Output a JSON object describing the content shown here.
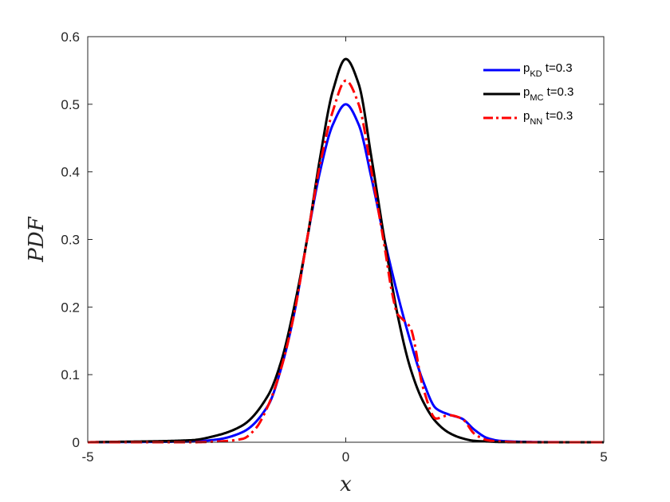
{
  "chart_data": {
    "type": "line",
    "title": "",
    "xlabel": "x",
    "ylabel": "PDF",
    "xlim": [
      -5,
      5
    ],
    "ylim": [
      0,
      0.6
    ],
    "xticks": [
      "-5",
      "0",
      "5"
    ],
    "yticks": [
      "0",
      "0.1",
      "0.2",
      "0.3",
      "0.4",
      "0.5",
      "0.6"
    ],
    "grid": false,
    "legend_position": "top-right",
    "series": [
      {
        "name": "p_KD t=0.3",
        "legend": {
          "base": "p",
          "sub": "KD",
          "suffix": " t=0.3"
        },
        "color": "#0000ff",
        "dash": "solid",
        "x": [
          -5,
          -3,
          -2.5,
          -2,
          -1.5,
          -1.25,
          -1,
          -0.75,
          -0.5,
          -0.25,
          0,
          0.25,
          0.5,
          0.75,
          1,
          1.25,
          1.5,
          1.75,
          2,
          2.25,
          2.5,
          2.75,
          3,
          3.5,
          4,
          5
        ],
        "y": [
          0,
          0.001,
          0.004,
          0.015,
          0.055,
          0.11,
          0.19,
          0.3,
          0.4,
          0.47,
          0.5,
          0.47,
          0.39,
          0.3,
          0.22,
          0.15,
          0.09,
          0.05,
          0.041,
          0.035,
          0.018,
          0.006,
          0.002,
          0.0005,
          0.0001,
          0
        ]
      },
      {
        "name": "p_MC t=0.3",
        "legend": {
          "base": "p",
          "sub": "MC",
          "suffix": " t=0.3"
        },
        "color": "#000000",
        "dash": "solid",
        "x": [
          -5,
          -3,
          -2.5,
          -2,
          -1.5,
          -1.25,
          -1,
          -0.75,
          -0.5,
          -0.25,
          0,
          0.25,
          0.5,
          0.75,
          1,
          1.25,
          1.5,
          1.75,
          2,
          2.25,
          2.5,
          2.75,
          3,
          3.5,
          4,
          5
        ],
        "y": [
          0,
          0.003,
          0.01,
          0.025,
          0.07,
          0.12,
          0.2,
          0.3,
          0.42,
          0.52,
          0.567,
          0.53,
          0.42,
          0.3,
          0.19,
          0.11,
          0.06,
          0.03,
          0.014,
          0.006,
          0.002,
          0.001,
          0.0003,
          0.0001,
          0,
          0
        ]
      },
      {
        "name": "p_NN t=0.3",
        "legend": {
          "base": "p",
          "sub": "NN",
          "suffix": " t=0.3"
        },
        "color": "#ff0000",
        "dash": "dashdot",
        "x": [
          -5,
          -3,
          -2.5,
          -2,
          -1.75,
          -1.5,
          -1.25,
          -1,
          -0.75,
          -0.5,
          -0.25,
          0,
          0.25,
          0.5,
          0.75,
          0.9,
          1,
          1.1,
          1.25,
          1.5,
          1.75,
          2,
          2.25,
          2.5,
          2.75,
          3,
          3.5,
          4,
          5
        ],
        "y": [
          0,
          0,
          0.001,
          0.005,
          0.02,
          0.055,
          0.11,
          0.19,
          0.3,
          0.41,
          0.49,
          0.535,
          0.5,
          0.4,
          0.29,
          0.22,
          0.19,
          0.182,
          0.17,
          0.08,
          0.035,
          0.04,
          0.035,
          0.012,
          0.003,
          0.001,
          0,
          0,
          0
        ]
      }
    ]
  }
}
